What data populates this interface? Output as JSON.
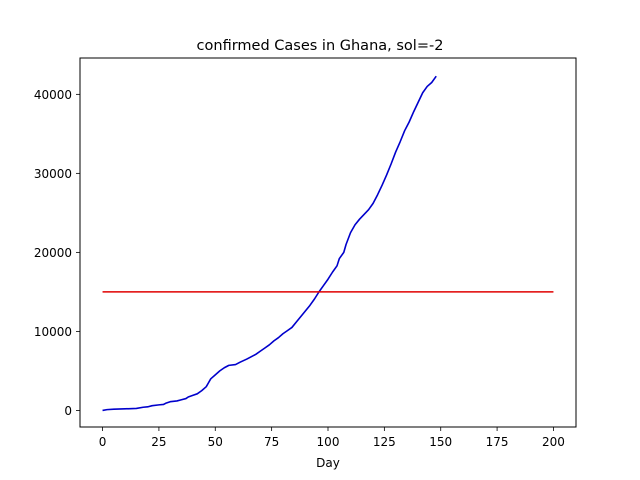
{
  "chart_data": {
    "type": "line",
    "title": "confirmed Cases in Ghana, sol=-2",
    "xlabel": "Day",
    "ylabel": "",
    "xlim": [
      -10,
      210
    ],
    "ylim": [
      -2100,
      44600
    ],
    "x_ticks": [
      0,
      25,
      50,
      75,
      100,
      125,
      150,
      175,
      200
    ],
    "y_ticks": [
      0,
      10000,
      20000,
      30000,
      40000
    ],
    "grid": false,
    "series": [
      {
        "color": "#0000cc",
        "points": [
          [
            0,
            0
          ],
          [
            2,
            100
          ],
          [
            5,
            150
          ],
          [
            10,
            200
          ],
          [
            15,
            250
          ],
          [
            18,
            400
          ],
          [
            20,
            450
          ],
          [
            22,
            600
          ],
          [
            25,
            700
          ],
          [
            27,
            750
          ],
          [
            28,
            900
          ],
          [
            30,
            1100
          ],
          [
            33,
            1200
          ],
          [
            35,
            1350
          ],
          [
            37,
            1500
          ],
          [
            38,
            1700
          ],
          [
            40,
            1900
          ],
          [
            42,
            2100
          ],
          [
            44,
            2500
          ],
          [
            46,
            3000
          ],
          [
            47,
            3500
          ],
          [
            48,
            4000
          ],
          [
            50,
            4500
          ],
          [
            52,
            5000
          ],
          [
            54,
            5400
          ],
          [
            56,
            5700
          ],
          [
            59,
            5800
          ],
          [
            61,
            6100
          ],
          [
            64,
            6500
          ],
          [
            66,
            6800
          ],
          [
            68,
            7100
          ],
          [
            70,
            7500
          ],
          [
            72,
            7900
          ],
          [
            74,
            8300
          ],
          [
            76,
            8800
          ],
          [
            78,
            9200
          ],
          [
            80,
            9700
          ],
          [
            82,
            10100
          ],
          [
            84,
            10500
          ],
          [
            86,
            11200
          ],
          [
            88,
            11900
          ],
          [
            90,
            12600
          ],
          [
            92,
            13300
          ],
          [
            94,
            14100
          ],
          [
            96,
            15000
          ],
          [
            98,
            15800
          ],
          [
            100,
            16600
          ],
          [
            102,
            17500
          ],
          [
            104,
            18300
          ],
          [
            105,
            19200
          ],
          [
            107,
            20000
          ],
          [
            108,
            21000
          ],
          [
            110,
            22500
          ],
          [
            112,
            23500
          ],
          [
            114,
            24200
          ],
          [
            116,
            24800
          ],
          [
            118,
            25400
          ],
          [
            120,
            26200
          ],
          [
            122,
            27300
          ],
          [
            124,
            28500
          ],
          [
            126,
            29800
          ],
          [
            128,
            31200
          ],
          [
            130,
            32700
          ],
          [
            132,
            34000
          ],
          [
            134,
            35400
          ],
          [
            136,
            36500
          ],
          [
            138,
            37800
          ],
          [
            140,
            39000
          ],
          [
            142,
            40200
          ],
          [
            144,
            41000
          ],
          [
            146,
            41500
          ],
          [
            148,
            42300
          ]
        ]
      },
      {
        "color": "#e00000",
        "points": [
          [
            0,
            15000
          ],
          [
            200,
            15000
          ]
        ]
      }
    ]
  }
}
